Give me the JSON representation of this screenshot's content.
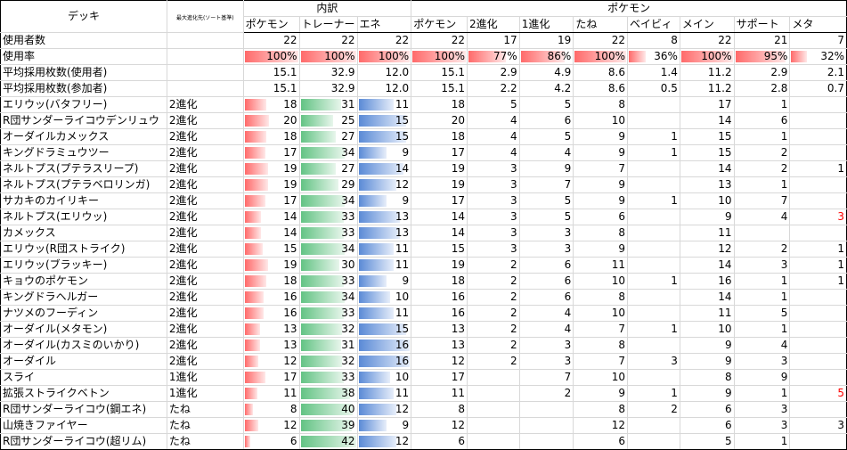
{
  "headers": {
    "deck": "デッキ",
    "max_evolution": "最大進化先(ソート基準)",
    "breakdown_group": "内訳",
    "pokemon_group": "ポケモン",
    "columns": [
      "ポケモン",
      "トレーナー",
      "エネ",
      "ポケモン",
      "2進化",
      "1進化",
      "たね",
      "ベイビィ",
      "メイン",
      "サポート",
      "メタ"
    ]
  },
  "summary": {
    "users_label": "使用者数",
    "users": [
      22,
      22,
      22,
      22,
      17,
      19,
      22,
      8,
      22,
      21,
      7
    ],
    "rate_label": "使用率",
    "rate_pct": [
      100,
      100,
      100,
      100,
      77,
      86,
      100,
      36,
      100,
      95,
      32
    ],
    "rate_text": [
      "100%",
      "100%",
      "100%",
      "100%",
      "77%",
      "86%",
      "100%",
      "36%",
      "100%",
      "95%",
      "32%"
    ],
    "avg_users_label": "平均採用枚数(使用者)",
    "avg_users": [
      "15.1",
      "32.9",
      "12.0",
      "15.1",
      "2.9",
      "4.9",
      "8.6",
      "1.4",
      "11.2",
      "2.9",
      "2.1"
    ],
    "avg_all_label": "平均採用枚数(参加者)",
    "avg_all": [
      "15.1",
      "32.9",
      "12.0",
      "15.1",
      "2.2",
      "4.2",
      "8.6",
      "0.5",
      "11.2",
      "2.8",
      "0.7"
    ]
  },
  "rows": [
    {
      "deck": "エリウッ(バタフリー)",
      "evo": "2進化",
      "v": [
        18,
        31,
        11,
        18,
        5,
        5,
        8,
        "",
        17,
        1,
        ""
      ]
    },
    {
      "deck": "R団サンダーライコウデンリュウ",
      "evo": "2進化",
      "v": [
        20,
        25,
        15,
        20,
        4,
        6,
        10,
        "",
        14,
        6,
        ""
      ]
    },
    {
      "deck": "オーダイルカメックス",
      "evo": "2進化",
      "v": [
        18,
        27,
        15,
        18,
        4,
        5,
        9,
        1,
        15,
        1,
        ""
      ]
    },
    {
      "deck": "キングドラミュウツー",
      "evo": "2進化",
      "v": [
        17,
        34,
        9,
        17,
        4,
        4,
        9,
        1,
        15,
        2,
        ""
      ]
    },
    {
      "deck": "ネルトプス(プテラスリープ)",
      "evo": "2進化",
      "v": [
        19,
        27,
        14,
        19,
        3,
        9,
        7,
        "",
        14,
        2,
        1
      ]
    },
    {
      "deck": "ネルトプス(プテラベロリンガ)",
      "evo": "2進化",
      "v": [
        19,
        29,
        12,
        19,
        3,
        7,
        9,
        "",
        13,
        1,
        ""
      ]
    },
    {
      "deck": "サカキのカイリキー",
      "evo": "2進化",
      "v": [
        17,
        34,
        9,
        17,
        3,
        5,
        9,
        1,
        10,
        7,
        ""
      ]
    },
    {
      "deck": "ネルトプス(エリウッ)",
      "evo": "2進化",
      "v": [
        14,
        33,
        13,
        14,
        3,
        5,
        6,
        "",
        9,
        4,
        3
      ]
    },
    {
      "deck": "カメックス",
      "evo": "2進化",
      "v": [
        14,
        33,
        13,
        14,
        3,
        3,
        8,
        "",
        11,
        "",
        ""
      ]
    },
    {
      "deck": "エリウッ(R団ストライク)",
      "evo": "2進化",
      "v": [
        15,
        34,
        11,
        15,
        3,
        3,
        9,
        "",
        12,
        2,
        1
      ]
    },
    {
      "deck": "エリウッ(ブラッキー)",
      "evo": "2進化",
      "v": [
        19,
        30,
        11,
        19,
        2,
        6,
        11,
        "",
        14,
        3,
        1
      ]
    },
    {
      "deck": "キョウのポケモン",
      "evo": "2進化",
      "v": [
        18,
        33,
        9,
        18,
        2,
        6,
        10,
        1,
        16,
        1,
        1
      ]
    },
    {
      "deck": "キングドラヘルガー",
      "evo": "2進化",
      "v": [
        16,
        34,
        10,
        16,
        2,
        6,
        8,
        "",
        14,
        1,
        ""
      ]
    },
    {
      "deck": "ナツメのフーディン",
      "evo": "2進化",
      "v": [
        16,
        33,
        11,
        16,
        2,
        4,
        10,
        "",
        11,
        5,
        ""
      ]
    },
    {
      "deck": "オーダイル(メタモン)",
      "evo": "2進化",
      "v": [
        13,
        32,
        15,
        13,
        2,
        4,
        7,
        1,
        10,
        1,
        ""
      ]
    },
    {
      "deck": "オーダイル(カスミのいかり)",
      "evo": "2進化",
      "v": [
        13,
        31,
        16,
        13,
        2,
        3,
        8,
        "",
        9,
        4,
        ""
      ]
    },
    {
      "deck": "オーダイル",
      "evo": "2進化",
      "v": [
        12,
        32,
        16,
        12,
        2,
        3,
        7,
        3,
        9,
        3,
        ""
      ]
    },
    {
      "deck": "スライ",
      "evo": "1進化",
      "v": [
        17,
        33,
        10,
        17,
        "",
        7,
        10,
        "",
        8,
        9,
        ""
      ]
    },
    {
      "deck": "拡張ストライクベトン",
      "evo": "1進化",
      "v": [
        11,
        38,
        11,
        11,
        "",
        2,
        9,
        1,
        9,
        1,
        5
      ]
    },
    {
      "deck": "R団サンダーライコウ(鋼エネ)",
      "evo": "たね",
      "v": [
        8,
        40,
        12,
        8,
        "",
        "",
        8,
        2,
        6,
        3,
        ""
      ]
    },
    {
      "deck": "山焼きファイヤー",
      "evo": "たね",
      "v": [
        12,
        39,
        9,
        12,
        "",
        "",
        12,
        "",
        6,
        3,
        3
      ]
    },
    {
      "deck": "R団サンダーライコウ(超リム)",
      "evo": "たね",
      "v": [
        6,
        42,
        12,
        6,
        "",
        "",
        6,
        "",
        5,
        1,
        ""
      ]
    }
  ],
  "red_meta_rows": [
    7,
    18
  ],
  "bar_max": {
    "pokemon": 42,
    "trainer": 42,
    "energy": 16,
    "rate": 100
  },
  "colors": {
    "red_bar": "#ff6a6a",
    "green_bar": "#63c384",
    "blue_bar": "#5a8ad6",
    "red_text": "#ff0000"
  }
}
